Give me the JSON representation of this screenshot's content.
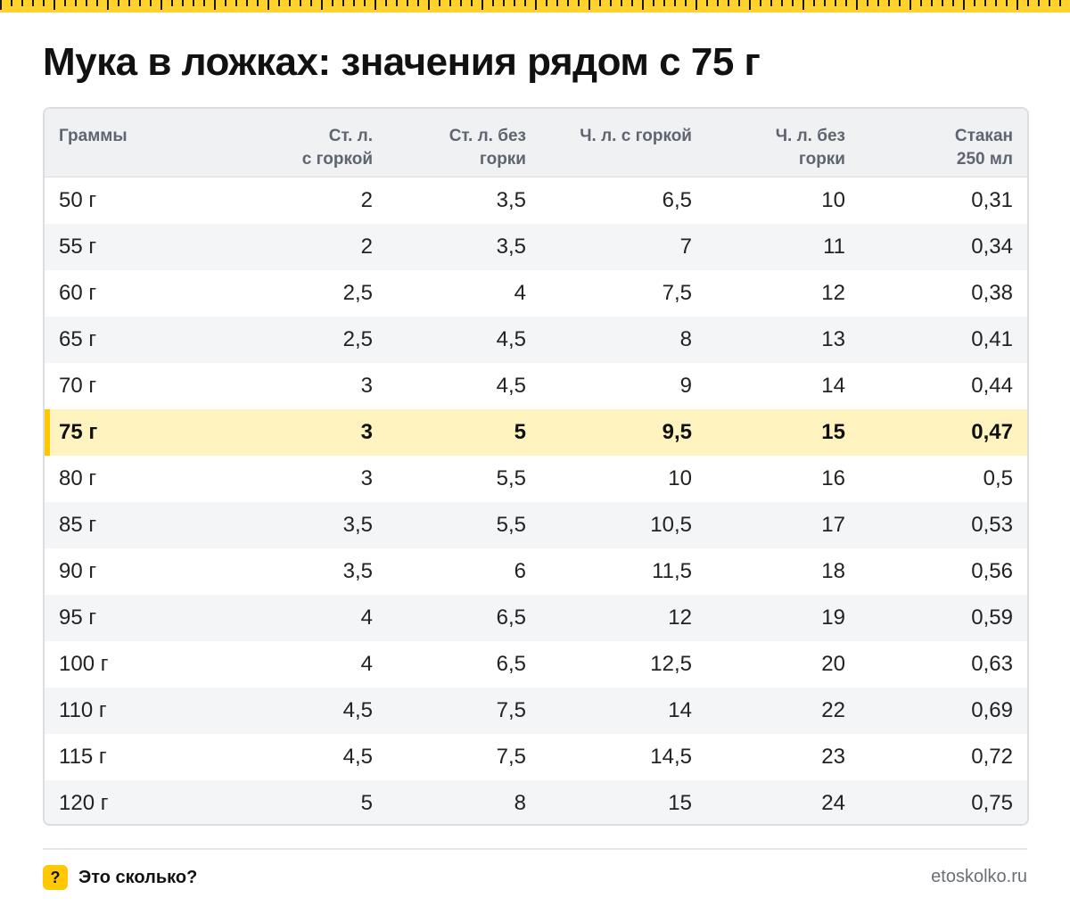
{
  "title": "Мука в ложках: значения рядом с 75 г",
  "table": {
    "headers": [
      "Граммы",
      "Ст. л.\nс горкой",
      "Ст. л. без\nгорки",
      "Ч. л. с горкой",
      "Ч. л. без\nгорки",
      "Стакан\n250 мл"
    ],
    "highlight_row": 5,
    "rows": [
      [
        "50 г",
        "2",
        "3,5",
        "6,5",
        "10",
        "0,31"
      ],
      [
        "55 г",
        "2",
        "3,5",
        "7",
        "11",
        "0,34"
      ],
      [
        "60 г",
        "2,5",
        "4",
        "7,5",
        "12",
        "0,38"
      ],
      [
        "65 г",
        "2,5",
        "4,5",
        "8",
        "13",
        "0,41"
      ],
      [
        "70 г",
        "3",
        "4,5",
        "9",
        "14",
        "0,44"
      ],
      [
        "75 г",
        "3",
        "5",
        "9,5",
        "15",
        "0,47"
      ],
      [
        "80 г",
        "3",
        "5,5",
        "10",
        "16",
        "0,5"
      ],
      [
        "85 г",
        "3,5",
        "5,5",
        "10,5",
        "17",
        "0,53"
      ],
      [
        "90 г",
        "3,5",
        "6",
        "11,5",
        "18",
        "0,56"
      ],
      [
        "95 г",
        "4",
        "6,5",
        "12",
        "19",
        "0,59"
      ],
      [
        "100 г",
        "4",
        "6,5",
        "12,5",
        "20",
        "0,63"
      ],
      [
        "110 г",
        "4,5",
        "7,5",
        "14",
        "22",
        "0,69"
      ],
      [
        "115 г",
        "4,5",
        "7,5",
        "14,5",
        "23",
        "0,72"
      ],
      [
        "120 г",
        "5",
        "8",
        "15",
        "24",
        "0,75"
      ]
    ]
  },
  "footer": {
    "brand_icon": "?",
    "brand_name": "Это сколько?",
    "site": "etoskolko.ru"
  },
  "colors": {
    "accent": "#ffc800",
    "highlight_bg": "#fff3bf",
    "header_bg": "#f0f1f3"
  }
}
